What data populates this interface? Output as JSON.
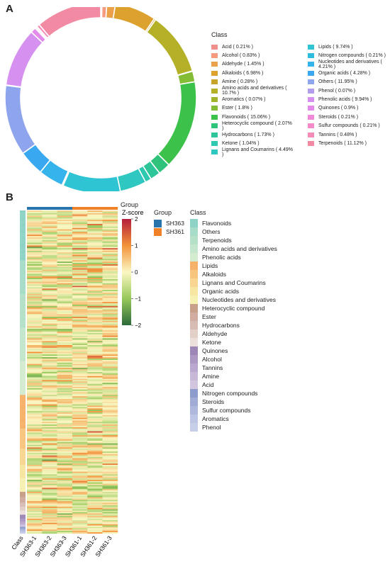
{
  "panels": {
    "a": "A",
    "b": "B"
  },
  "donut": {
    "legend_title": "Class",
    "items": [
      {
        "label": "Acid ( 0.21% )",
        "value": 0.21,
        "color": "#f0908e"
      },
      {
        "label": "Alcohol ( 0.83% )",
        "value": 0.83,
        "color": "#f59b80"
      },
      {
        "label": "Aldehyde ( 1.45% )",
        "value": 1.45,
        "color": "#eba04a"
      },
      {
        "label": "Alkaloids ( 6.98% )",
        "value": 6.98,
        "color": "#dda12d"
      },
      {
        "label": "Amine ( 0.28% )",
        "value": 0.28,
        "color": "#c8a52a"
      },
      {
        "label": "Amino acids and derivatives ( 10.7% )",
        "value": 10.7,
        "color": "#b4b128"
      },
      {
        "label": "Aromatics ( 0.07% )",
        "value": 0.07,
        "color": "#a2b52a"
      },
      {
        "label": "Ester ( 1.8% )",
        "value": 1.8,
        "color": "#84bc35"
      },
      {
        "label": "Flavonoids ( 15.06% )",
        "value": 15.06,
        "color": "#3cc14b"
      },
      {
        "label": "Heterocyclic compound ( 2.07% )",
        "value": 2.07,
        "color": "#2ec27a"
      },
      {
        "label": "Hydrocarbons ( 1.73% )",
        "value": 1.73,
        "color": "#2cc69a"
      },
      {
        "label": "Ketone ( 1.04% )",
        "value": 1.04,
        "color": "#2ec8b0"
      },
      {
        "label": "Lignans and Coumarins ( 4.49% )",
        "value": 4.49,
        "color": "#2ec8c0"
      },
      {
        "label": "Lipids ( 9.74% )",
        "value": 9.74,
        "color": "#2ec4d4"
      },
      {
        "label": "Nitrogen compounds ( 0.21% )",
        "value": 0.21,
        "color": "#2ebcde"
      },
      {
        "label": "Nucleotides and derivatives ( 4.21% )",
        "value": 4.21,
        "color": "#34b4ea"
      },
      {
        "label": "Organic acids ( 4.28% )",
        "value": 4.28,
        "color": "#3aa8f0"
      },
      {
        "label": "Others ( 11.95% )",
        "value": 11.95,
        "color": "#8ea4ec"
      },
      {
        "label": "Phenol ( 0.07% )",
        "value": 0.07,
        "color": "#b29cee"
      },
      {
        "label": "Phenolic acids ( 9.94% )",
        "value": 9.94,
        "color": "#d691f0"
      },
      {
        "label": "Quinones ( 0.9% )",
        "value": 0.9,
        "color": "#e48aea"
      },
      {
        "label": "Steroids ( 0.21% )",
        "value": 0.21,
        "color": "#f08ad8"
      },
      {
        "label": "Sulfur compounds ( 0.21% )",
        "value": 0.21,
        "color": "#f48ac8"
      },
      {
        "label": "Tannins ( 0.48% )",
        "value": 0.48,
        "color": "#f48bb6"
      },
      {
        "label": "Terpenoids ( 11.12% )",
        "value": 11.12,
        "color": "#f38aa4"
      }
    ]
  },
  "heatmap": {
    "samples": [
      "SH363-1",
      "SH363-2",
      "SH363-3",
      "SH361-1",
      "SH361-2",
      "SH361-3"
    ],
    "sample_groups": [
      "SH363",
      "SH363",
      "SH363",
      "SH361",
      "SH361",
      "SH361"
    ],
    "class_axis_label": "Class",
    "group_label": "Group",
    "zscore_title": "Z-score",
    "zscore_ticks": [
      "2",
      "1",
      "0",
      "−1",
      "−2"
    ],
    "zscore_values": [
      2,
      1,
      0,
      -1,
      -2
    ],
    "group_legend_title": "Group",
    "groups": [
      {
        "label": "SH363",
        "color": "#2a74ad"
      },
      {
        "label": "SH361",
        "color": "#f08126"
      }
    ],
    "class_legend_title": "Class",
    "classes": [
      {
        "label": "Flavonoids",
        "color": "#8ed3c6"
      },
      {
        "label": "Others",
        "color": "#a6dcc8"
      },
      {
        "label": "Terpenoids",
        "color": "#b5e0c8"
      },
      {
        "label": "Amino acids and derivatives",
        "color": "#c4e6cc"
      },
      {
        "label": "Phenolic acids",
        "color": "#d3ecd0"
      },
      {
        "label": "Lipids",
        "color": "#f6b26b"
      },
      {
        "label": "Alkaloids",
        "color": "#f8c57e"
      },
      {
        "label": "Lignans and Coumarins",
        "color": "#f8d590"
      },
      {
        "label": "Organic acids",
        "color": "#f7e6a2"
      },
      {
        "label": "Nucleotides and derivatives",
        "color": "#f7f0b3"
      },
      {
        "label": "Heterocyclic compound",
        "color": "#c89f88"
      },
      {
        "label": "Ester",
        "color": "#d0ada0"
      },
      {
        "label": "Hydrocarbons",
        "color": "#d7bcb3"
      },
      {
        "label": "Aldehyde",
        "color": "#e2cfc7"
      },
      {
        "label": "Ketone",
        "color": "#ecdfdc"
      },
      {
        "label": "Quinones",
        "color": "#9e86b6"
      },
      {
        "label": "Alcohol",
        "color": "#ad98c4"
      },
      {
        "label": "Tannins",
        "color": "#bba8cf"
      },
      {
        "label": "Amine",
        "color": "#c7b8d8"
      },
      {
        "label": "Acid",
        "color": "#d2c6df"
      },
      {
        "label": "Nitrogen compounds",
        "color": "#8e9bcd"
      },
      {
        "label": "Steroids",
        "color": "#a0acd5"
      },
      {
        "label": "Sulfur compounds",
        "color": "#aeb8dc"
      },
      {
        "label": "Aromatics",
        "color": "#bcc5e3"
      },
      {
        "label": "Phenol",
        "color": "#c7cee8"
      }
    ]
  },
  "chart_data": [
    {
      "type": "pie",
      "legend_title": "Class",
      "labels": [
        "Acid",
        "Alcohol",
        "Aldehyde",
        "Alkaloids",
        "Amine",
        "Amino acids and derivatives",
        "Aromatics",
        "Ester",
        "Flavonoids",
        "Heterocyclic compound",
        "Hydrocarbons",
        "Ketone",
        "Lignans and Coumarins",
        "Lipids",
        "Nitrogen compounds",
        "Nucleotides and derivatives",
        "Organic acids",
        "Others",
        "Phenol",
        "Phenolic acids",
        "Quinones",
        "Steroids",
        "Sulfur compounds",
        "Tannins",
        "Terpenoids"
      ],
      "values": [
        0.21,
        0.83,
        1.45,
        6.98,
        0.28,
        10.7,
        0.07,
        1.8,
        15.06,
        2.07,
        1.73,
        1.04,
        4.49,
        9.74,
        0.21,
        4.21,
        4.28,
        11.95,
        0.07,
        9.94,
        0.9,
        0.21,
        0.21,
        0.48,
        11.12
      ],
      "legend_position": "right"
    },
    {
      "type": "heatmap",
      "columns": [
        "SH363-1",
        "SH363-2",
        "SH363-3",
        "SH361-1",
        "SH361-2",
        "SH361-3"
      ],
      "column_groups": [
        "SH363",
        "SH363",
        "SH363",
        "SH361",
        "SH361",
        "SH361"
      ],
      "color_scale": "Z-score",
      "color_range": [
        -2,
        2
      ],
      "legend_position": "right"
    }
  ]
}
